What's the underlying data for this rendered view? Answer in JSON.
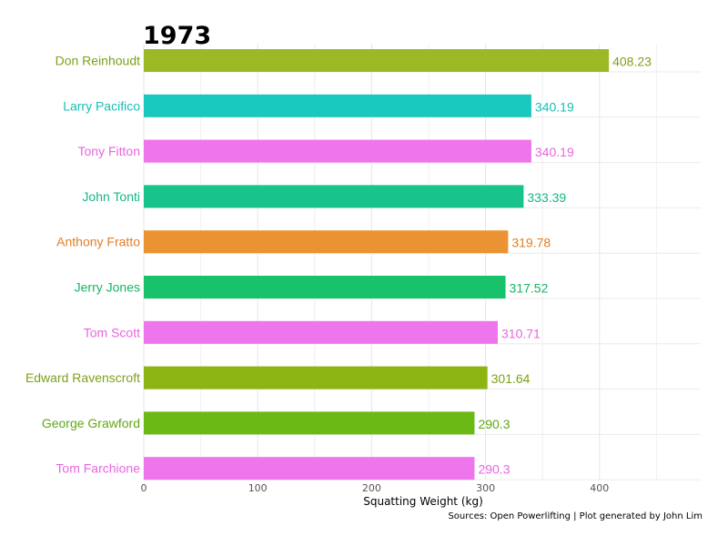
{
  "chart_data": {
    "type": "bar",
    "orientation": "horizontal",
    "title": "1973",
    "xlabel": "Squatting Weight (kg)",
    "ylabel": "",
    "caption": "Sources: Open Powerlifting | Plot generated by John Lim",
    "xlim": [
      0,
      490
    ],
    "xticks": [
      0,
      100,
      200,
      300,
      400
    ],
    "grid": true,
    "categories": [
      "Don Reinhoudt",
      "Larry Pacifico",
      "Tony Fitton",
      "John Tonti",
      "Anthony Fratto",
      "Jerry Jones",
      "Tom Scott",
      "Edward Ravenscroft",
      "George Grawford",
      "Tom Farchione"
    ],
    "values": [
      408.23,
      340.19,
      340.19,
      333.39,
      319.78,
      317.52,
      310.71,
      301.64,
      290.3,
      290.3
    ],
    "value_labels": [
      "408.23",
      "340.19",
      "340.19",
      "333.39",
      "319.78",
      "317.52",
      "310.71",
      "301.64",
      "290.3",
      "290.3"
    ],
    "colors": [
      "#9BB924",
      "#19C8BE",
      "#EE75EB",
      "#19C38C",
      "#EB9232",
      "#17C36A",
      "#EE75EB",
      "#8CB412",
      "#6AB914",
      "#EE75EB"
    ],
    "label_colors": [
      "#7FA01A",
      "#17BFB5",
      "#E865E0",
      "#17B589",
      "#E07D25",
      "#17B563",
      "#E865E0",
      "#7FA01A",
      "#5FA812",
      "#E865E0"
    ]
  }
}
